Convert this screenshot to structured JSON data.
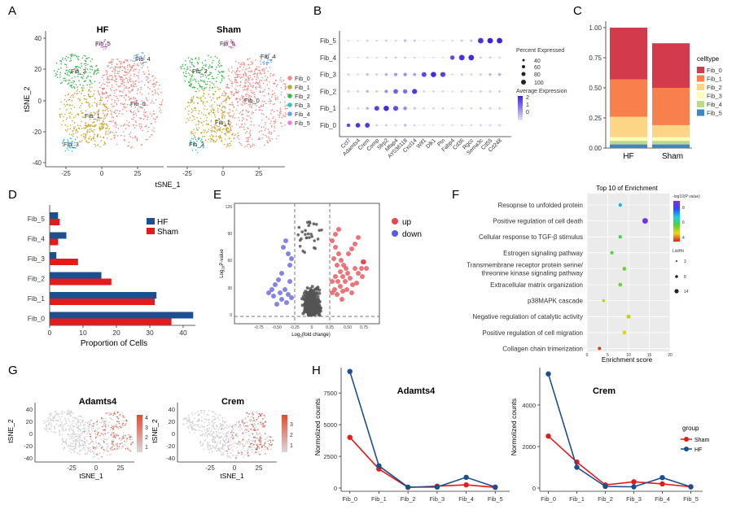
{
  "panel_letters": [
    "A",
    "B",
    "C",
    "D",
    "E",
    "F",
    "G",
    "H"
  ],
  "fib_labels": [
    "Fib_0",
    "Fib_1",
    "Fib_2",
    "Fib_3",
    "Fib_4",
    "Fib_5"
  ],
  "colors": {
    "fib0": "#ef8a84",
    "fib1": "#c5a730",
    "fib2": "#3cb44b",
    "fib3": "#35c2c5",
    "fib4": "#6aa1e6",
    "fib5": "#e67fe0",
    "hf": "#1b4f8f",
    "sham": "#e41a1c",
    "up": "#e8464e",
    "down": "#5b5be0",
    "ns": "#555555",
    "heat_low": "#cfcfcf",
    "heat_high": "#e24a33"
  },
  "chart_data": [
    {
      "id": "A",
      "type": "scatter",
      "titles": [
        "HF",
        "Sham"
      ],
      "xlabel": "tSNE_1",
      "ylabel": "tSNE_2",
      "xticks": [
        "-25",
        "0",
        "25"
      ],
      "yticks": [
        "40",
        "20",
        "0",
        "-20",
        "-40"
      ],
      "legend": [
        "Fib_0",
        "Fib_1",
        "Fib_2",
        "Fib_3",
        "Fib_4",
        "Fib_5"
      ]
    },
    {
      "id": "B",
      "type": "scatter",
      "subtype": "dotplot",
      "genes": [
        "Ccl7",
        "Adamts4",
        "Crem",
        "Comp",
        "Sfrp2",
        "Mfap4",
        "AY036118",
        "Cxcl14",
        "Wif1",
        "Dlk1",
        "Ptn",
        "Fabp4",
        "Cd36",
        "Rgcc",
        "Sema3c",
        "Cd55",
        "Cd248"
      ],
      "clusters": [
        "Fib_5",
        "Fib_4",
        "Fib_3",
        "Fib_2",
        "Fib_1",
        "Fib_0"
      ],
      "rows": [
        {
          "cluster": "Fib_5",
          "pct": [
            22,
            20,
            30,
            25,
            28,
            22,
            40,
            30,
            22,
            20,
            20,
            22,
            30,
            32,
            100,
            100,
            100
          ],
          "avg": [
            -0.4,
            -0.4,
            -0.3,
            -0.3,
            -0.2,
            -0.3,
            0.0,
            -0.1,
            -0.4,
            -0.4,
            -0.4,
            -0.3,
            -0.1,
            0.0,
            1.8,
            2.0,
            2.0
          ]
        },
        {
          "cluster": "Fib_4",
          "pct": [
            22,
            20,
            30,
            20,
            30,
            30,
            30,
            25,
            22,
            20,
            20,
            75,
            100,
            100,
            30,
            30,
            30
          ],
          "avg": [
            -0.4,
            -0.4,
            -0.3,
            -0.3,
            -0.2,
            -0.2,
            -0.2,
            -0.3,
            -0.4,
            -0.4,
            -0.4,
            1.5,
            1.8,
            1.9,
            -0.2,
            -0.2,
            -0.3
          ]
        },
        {
          "cluster": "Fib_3",
          "pct": [
            30,
            22,
            35,
            30,
            40,
            50,
            55,
            45,
            85,
            95,
            90,
            22,
            30,
            25,
            30,
            35,
            40
          ],
          "avg": [
            -0.2,
            -0.3,
            0.0,
            -0.2,
            0.2,
            0.5,
            0.6,
            0.4,
            1.5,
            1.9,
            1.6,
            -0.4,
            -0.2,
            -0.3,
            -0.2,
            0.1,
            0.2
          ]
        },
        {
          "cluster": "Fib_2",
          "pct": [
            30,
            28,
            40,
            30,
            50,
            80,
            75,
            90,
            30,
            28,
            28,
            22,
            30,
            25,
            30,
            30,
            30
          ],
          "avg": [
            -0.2,
            -0.2,
            0.1,
            -0.1,
            0.6,
            1.2,
            1.0,
            1.7,
            -0.3,
            -0.3,
            -0.3,
            -0.4,
            -0.2,
            -0.3,
            -0.2,
            -0.2,
            -0.2
          ]
        },
        {
          "cluster": "Fib_1",
          "pct": [
            30,
            25,
            40,
            85,
            95,
            90,
            60,
            35,
            28,
            28,
            28,
            22,
            30,
            28,
            30,
            30,
            30
          ],
          "avg": [
            -0.2,
            -0.3,
            0.2,
            1.6,
            1.9,
            1.4,
            0.6,
            -0.1,
            -0.3,
            -0.3,
            -0.3,
            -0.4,
            -0.2,
            -0.3,
            -0.2,
            -0.2,
            -0.2
          ]
        },
        {
          "cluster": "Fib_0",
          "pct": [
            60,
            80,
            85,
            30,
            30,
            28,
            40,
            28,
            22,
            20,
            20,
            22,
            25,
            25,
            28,
            28,
            30
          ],
          "avg": [
            1.4,
            1.8,
            1.7,
            -0.2,
            -0.2,
            -0.3,
            0.0,
            -0.3,
            -0.4,
            -0.4,
            -0.4,
            -0.4,
            -0.3,
            -0.3,
            -0.3,
            -0.3,
            -0.3
          ]
        }
      ],
      "size_legend_title": "Percent Expressed",
      "size_legend": [
        40,
        60,
        80,
        100
      ],
      "color_legend_title": "Average Expression",
      "color_ticks": [
        "2",
        "1",
        "0"
      ]
    },
    {
      "id": "C",
      "type": "bar",
      "subtype": "stacked",
      "categories": [
        "HF",
        "Sham"
      ],
      "series": [
        {
          "name": "Fib_5",
          "values": [
            0.03,
            0.03
          ]
        },
        {
          "name": "Fib_4",
          "values": [
            0.03,
            0.03
          ]
        },
        {
          "name": "Fib_3",
          "values": [
            0.03,
            0.03
          ]
        },
        {
          "name": "Fib_2",
          "values": [
            0.17,
            0.1
          ]
        },
        {
          "name": "Fib_1",
          "values": [
            0.31,
            0.31
          ]
        },
        {
          "name": "Fib_0",
          "values": [
            0.43,
            0.37
          ]
        }
      ],
      "series_colors": [
        "#3e86c2",
        "#b9dc8b",
        "#fdfdb8",
        "#fdd587",
        "#f8804d",
        "#d33a4c"
      ],
      "legend_title": "celltype",
      "legend_order": [
        "Fib_0",
        "Fib_1",
        "Fib_2",
        "Fib_3",
        "Fib_4",
        "Fib_5"
      ],
      "yticks": [
        "1.00",
        "0.75",
        "0.50",
        "0.25",
        "0.00"
      ],
      "ylim": [
        0,
        1
      ]
    },
    {
      "id": "D",
      "type": "bar",
      "subtype": "horizontal-grouped",
      "categories": [
        "Fib_5",
        "Fib_4",
        "Fib_3",
        "Fib_2",
        "Fib_1",
        "Fib_0"
      ],
      "series": [
        {
          "name": "HF",
          "values": [
            2.5,
            5,
            2,
            15.5,
            32,
            43
          ]
        },
        {
          "name": "Sham",
          "values": [
            3,
            2.5,
            8.5,
            18.5,
            31.5,
            36.5
          ]
        }
      ],
      "xlabel": "Proportion of Cells",
      "xticks": [
        "0",
        "10",
        "20",
        "30",
        "40"
      ],
      "xlim": [
        0,
        45
      ]
    },
    {
      "id": "E",
      "type": "scatter",
      "subtype": "volcano",
      "xlabel_main": "Log",
      "xlabel_sub": "2",
      "xlabel_end": "(fold change)",
      "ylabel_main": "Log",
      "ylabel_sub": "10",
      "ylabel_end": "P-value",
      "xticks": [
        "-0.75",
        "-0.50",
        "-0.25",
        "0",
        "0.25",
        "0.50",
        "0.75"
      ],
      "yticks": [
        "120",
        "90",
        "60",
        "30",
        "0"
      ],
      "legend": [
        "up",
        "down"
      ]
    },
    {
      "id": "F",
      "type": "scatter",
      "subtype": "enrichment",
      "title": "Top 10 of Enrichment",
      "terms": [
        {
          "name": "Resopnse to unfolded protein",
          "score": 8,
          "logp": 6.5,
          "count": 5
        },
        {
          "name": "Positive regulation of cell death",
          "score": 14,
          "logp": 8.6,
          "count": 12
        },
        {
          "name": "Cellular response to TGF-β stimulus",
          "score": 8,
          "logp": 5.2,
          "count": 5
        },
        {
          "name": "Estrogen signaling pathway",
          "score": 6,
          "logp": 5.0,
          "count": 4
        },
        {
          "name": "Transmembrane receptor protein serine/",
          "name2": "threonine kinase signaling pathway",
          "score": 9,
          "logp": 4.6,
          "count": 6
        },
        {
          "name": "Extracellular matrix organization",
          "score": 8,
          "logp": 4.6,
          "count": 6
        },
        {
          "name": "p38MAPK cascade",
          "score": 4,
          "logp": 3.9,
          "count": 3
        },
        {
          "name": "Negative regulation of catalytic activity",
          "score": 10,
          "logp": 3.8,
          "count": 7
        },
        {
          "name": "Positive regulation of cell migration",
          "score": 9,
          "logp": 3.6,
          "count": 6
        },
        {
          "name": "Collagen chain trimerization",
          "score": 3,
          "logp": 2.2,
          "count": 4
        }
      ],
      "xlabel": "Enrichment  score",
      "xticks": [
        "0",
        "5",
        "10",
        "15",
        "20"
      ],
      "xlim": [
        0,
        20
      ],
      "color_legend_title": "-log10(P value)",
      "color_ticks": [
        "8",
        "6",
        "4"
      ],
      "size_legend_title": "ListHit",
      "size_legend": [
        "3",
        "8",
        "14"
      ]
    },
    {
      "id": "G",
      "type": "scatter",
      "subtype": "feature-plot",
      "plots": [
        {
          "title": "Adamts4",
          "colorbar": [
            "4",
            "3",
            "2",
            "1"
          ]
        },
        {
          "title": "Crem",
          "colorbar": [
            "3",
            "2",
            "1"
          ]
        }
      ],
      "xlabel": "tSNE_1",
      "ylabel": "tSNE_2",
      "xticks": [
        "-25",
        "0",
        "25"
      ],
      "yticks": [
        "40",
        "20",
        "0",
        "-20",
        "-40"
      ]
    },
    {
      "id": "H",
      "type": "line",
      "x": [
        "Fib_0",
        "Fib_1",
        "Fib_2",
        "Fib_3",
        "Fib_4",
        "Fib_5"
      ],
      "plots": [
        {
          "title": "Adamts4",
          "ylabel": "Normolized counts",
          "ylim": [
            0,
            9500
          ],
          "yticks": [
            0,
            2500,
            5000,
            7500
          ],
          "ytick_labels": [
            "0",
            "2500",
            "5000",
            "7500"
          ],
          "series": [
            {
              "name": "Sham",
              "values": [
                4000,
                1500,
                50,
                150,
                250,
                50
              ]
            },
            {
              "name": "HF",
              "values": [
                9200,
                1750,
                80,
                80,
                850,
                80
              ]
            }
          ]
        },
        {
          "title": "Crem",
          "ylabel": "Normolized counts",
          "ylim": [
            0,
            5800
          ],
          "yticks": [
            0,
            2000,
            4000
          ],
          "ytick_labels": [
            "0",
            "2000",
            "4000"
          ],
          "series": [
            {
              "name": "Sham",
              "values": [
                2500,
                1250,
                150,
                300,
                200,
                60
              ]
            },
            {
              "name": "HF",
              "values": [
                5500,
                1000,
                80,
                60,
                500,
                60
              ]
            }
          ]
        }
      ],
      "legend_title": "group",
      "legend": [
        "Sham",
        "HF"
      ]
    }
  ]
}
